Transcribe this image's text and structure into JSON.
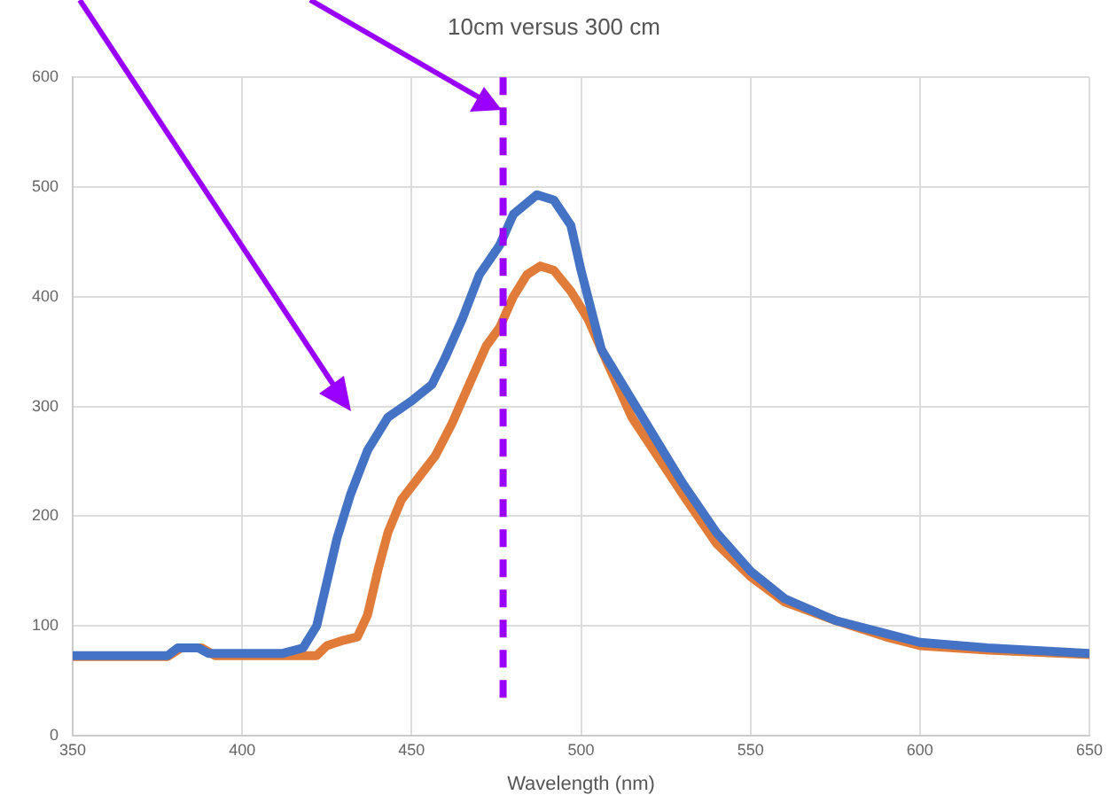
{
  "chart_data": {
    "type": "line",
    "title": "10cm versus 300 cm",
    "xlabel": "Wavelength (nm)",
    "xlim": [
      350,
      650
    ],
    "ylim": [
      0,
      600
    ],
    "xticks": [
      350,
      400,
      450,
      500,
      550,
      600,
      650
    ],
    "yticks": [
      0,
      100,
      200,
      300,
      400,
      500,
      600
    ],
    "grid": true,
    "legend": false,
    "marker": "none",
    "line_style": "solid",
    "series": [
      {
        "color": "#4472c4",
        "x": [
          350,
          365,
          378,
          381,
          387,
          390,
          400,
          412,
          418,
          422,
          425,
          428,
          432,
          437,
          443,
          450,
          456,
          460,
          465,
          470,
          476,
          480,
          487,
          492,
          497,
          500,
          506,
          515,
          530,
          540,
          550,
          560,
          575,
          590,
          600,
          620,
          650
        ],
        "values": [
          73,
          73,
          73,
          80,
          80,
          75,
          75,
          75,
          80,
          100,
          140,
          180,
          220,
          260,
          290,
          305,
          320,
          345,
          380,
          420,
          447,
          475,
          493,
          488,
          465,
          424,
          352,
          306,
          230,
          185,
          150,
          125,
          105,
          93,
          85,
          80,
          75
        ]
      },
      {
        "color": "#e07b39",
        "x": [
          350,
          365,
          378,
          382,
          388,
          392,
          400,
          412,
          422,
          425,
          430,
          434,
          437,
          440,
          443,
          447,
          452,
          457,
          462,
          467,
          472,
          476,
          480,
          484,
          488,
          492,
          497,
          502,
          507,
          515,
          530,
          540,
          550,
          560,
          575,
          590,
          600,
          620,
          650
        ],
        "values": [
          72,
          72,
          72,
          80,
          80,
          73,
          73,
          73,
          73,
          82,
          87,
          90,
          110,
          150,
          185,
          215,
          235,
          255,
          285,
          320,
          355,
          372,
          400,
          420,
          428,
          424,
          405,
          380,
          345,
          290,
          220,
          175,
          145,
          122,
          105,
          90,
          82,
          78,
          74
        ]
      }
    ],
    "ref_lines": [
      {
        "axis": "x",
        "value": 477,
        "color": "#9900ff",
        "line_style": "dashed"
      }
    ]
  }
}
